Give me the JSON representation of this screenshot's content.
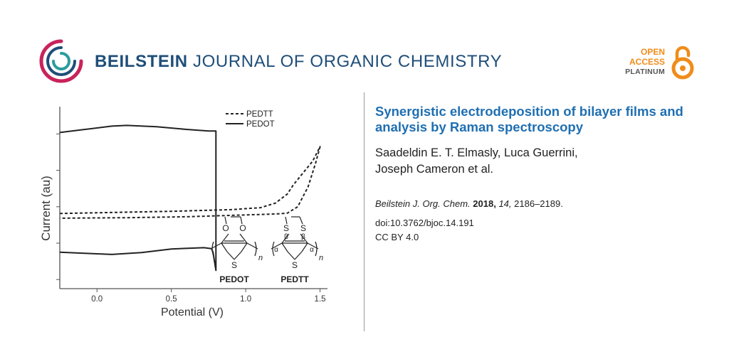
{
  "header": {
    "journal_name_strong": "BEILSTEIN",
    "journal_name_rest": "JOURNAL OF ORGANIC CHEMISTRY",
    "logo_icon": "beilstein-swirl-logo",
    "badge": {
      "line1": "OPEN",
      "line2": "ACCESS",
      "line3": "PLATINUM",
      "icon": "open-lock-icon"
    }
  },
  "colors": {
    "journal_blue": "#1f4e79",
    "title_blue": "#1f6fb2",
    "oa_orange": "#f08c1a",
    "logo_magenta": "#c8235a",
    "logo_teal": "#2a9d9c"
  },
  "article": {
    "title": "Synergistic electrodeposition of bilayer films and analysis by Raman spectroscopy",
    "authors_line1": "Saadeldin E. T. Elmasly, Luca Guerrini,",
    "authors_line2": "Joseph Cameron et al.",
    "citation": {
      "journal": "Beilstein J. Org. Chem.",
      "year": "2018,",
      "volume": "14,",
      "pages": "2186–2189."
    },
    "doi": "doi:10.3762/bjoc.14.191",
    "license": "CC BY 4.0"
  },
  "figure": {
    "molecules": [
      {
        "label": "PEDOT",
        "heteroatom": "O",
        "sulfur": "S",
        "repeat": "n"
      },
      {
        "label": "PEDTT",
        "heteroatom": "S",
        "sulfur": "S",
        "repeat": "n",
        "alpha": "α",
        "beta": "β"
      }
    ]
  },
  "chart_data": {
    "type": "line",
    "xlabel": "Potential (V)",
    "ylabel": "Current (au)",
    "xlim": [
      -0.25,
      1.55
    ],
    "ylim": [
      0,
      1
    ],
    "xticks": [
      0.0,
      0.5,
      1.0,
      1.5
    ],
    "xtick_labels": [
      "0.0",
      "0.5",
      "1.0",
      "1.5"
    ],
    "grid": false,
    "legend_position": "top-right",
    "series": [
      {
        "name": "PEDTT",
        "style": "dashed",
        "x": [
          -0.25,
          0.5,
          0.9,
          1.1,
          1.2,
          1.28,
          1.32,
          1.38,
          1.45,
          1.5,
          1.47,
          1.42,
          1.35,
          1.28,
          1.2,
          1.0,
          0.6,
          0.2,
          -0.25
        ],
        "y": [
          0.413,
          0.425,
          0.434,
          0.445,
          0.47,
          0.52,
          0.57,
          0.63,
          0.7,
          0.78,
          0.69,
          0.56,
          0.45,
          0.415,
          0.41,
          0.405,
          0.395,
          0.39,
          0.387
        ]
      },
      {
        "name": "PEDOT",
        "style": "solid",
        "x": [
          -0.25,
          -0.1,
          0.1,
          0.2,
          0.4,
          0.6,
          0.75,
          0.8,
          0.8,
          0.78,
          0.77,
          0.72,
          0.5,
          0.3,
          0.1,
          -0.1,
          -0.25
        ],
        "y": [
          0.858,
          0.873,
          0.893,
          0.897,
          0.89,
          0.875,
          0.866,
          0.866,
          0.1,
          0.2,
          0.22,
          0.225,
          0.218,
          0.198,
          0.188,
          0.195,
          0.2
        ]
      }
    ]
  }
}
